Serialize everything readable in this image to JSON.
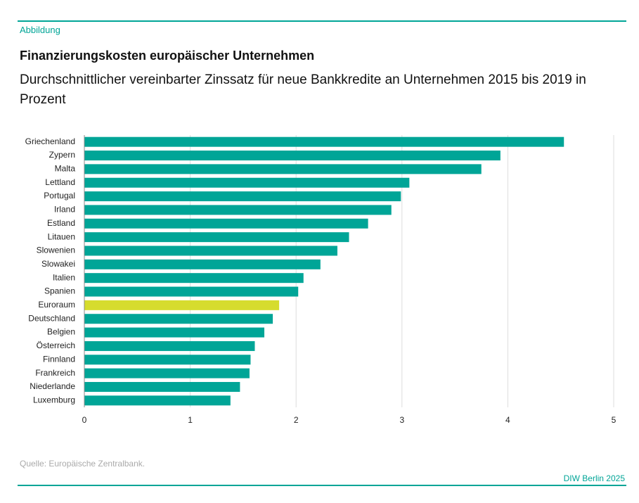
{
  "label": "Abbildung",
  "chart_data": {
    "type": "hbar",
    "title": "Finanzierungskosten europäischer Unternehmen",
    "subtitle": "Durchschnittlicher vereinbarter Zinssatz für neue Bankkredite an Unternehmen 2015 bis 2019 in Prozent",
    "categories": [
      "Griechenland",
      "Zypern",
      "Malta",
      "Lettland",
      "Portugal",
      "Irland",
      "Estland",
      "Litauen",
      "Slowenien",
      "Slowakei",
      "Italien",
      "Spanien",
      "Euroraum",
      "Deutschland",
      "Belgien",
      "Österreich",
      "Finnland",
      "Frankreich",
      "Niederlande",
      "Luxemburg"
    ],
    "values": [
      4.53,
      3.93,
      3.75,
      3.07,
      2.99,
      2.9,
      2.68,
      2.5,
      2.39,
      2.23,
      2.07,
      2.02,
      1.84,
      1.78,
      1.7,
      1.61,
      1.57,
      1.56,
      1.47,
      1.38
    ],
    "colors": [
      "#00a597",
      "#00a597",
      "#00a597",
      "#00a597",
      "#00a597",
      "#00a597",
      "#00a597",
      "#00a597",
      "#00a597",
      "#00a597",
      "#00a597",
      "#00a597",
      "#d6dc2e",
      "#00a597",
      "#00a597",
      "#00a597",
      "#00a597",
      "#00a597",
      "#00a597",
      "#00a597"
    ],
    "xlim": [
      0,
      5
    ],
    "xticks": [
      0,
      1,
      2,
      3,
      4,
      5
    ],
    "grid": true
  },
  "source": "Quelle: Europäische Zentralbank.",
  "credit": "DIW Berlin 2025"
}
